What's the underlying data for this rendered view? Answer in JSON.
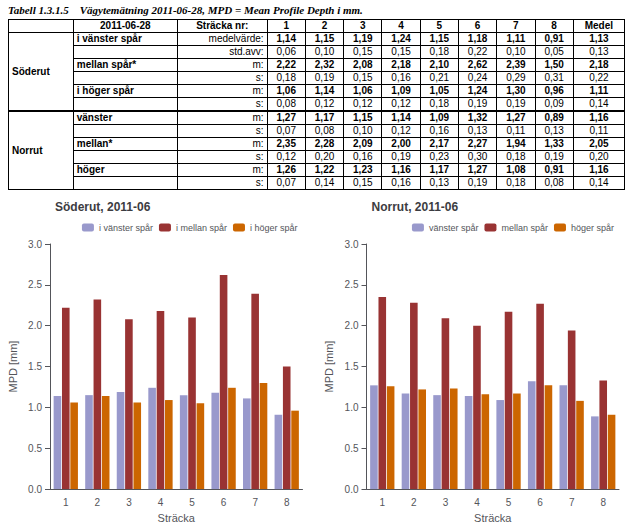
{
  "chart_data": [
    {
      "type": "table",
      "title": "Tabell 1.3.1.5    Vägytemätning 2011-06-28, MPD = Mean Profile Depth i mm.",
      "columns": [
        "2011-06-28",
        "Sträcka nr:",
        "1",
        "2",
        "3",
        "4",
        "5",
        "6",
        "7",
        "8",
        "Medel"
      ],
      "sections": [
        {
          "name": "Söderut",
          "rows": [
            {
              "label": "i vänster spår",
              "stat": "medelvärde:",
              "values": [
                "1,14",
                "1,15",
                "1,19",
                "1,24",
                "1,15",
                "1,18",
                "1,11",
                "0,91",
                "1,13"
              ]
            },
            {
              "stat": "std.avv:",
              "values": [
                "0,06",
                "0,10",
                "0,15",
                "0,15",
                "0,18",
                "0,22",
                "0,10",
                "0,05",
                "0,13"
              ]
            },
            {
              "label": "mellan spår*",
              "stat": "m:",
              "values": [
                "2,22",
                "2,32",
                "2,08",
                "2,18",
                "2,10",
                "2,62",
                "2,39",
                "1,50",
                "2,18"
              ]
            },
            {
              "stat": "s:",
              "values": [
                "0,18",
                "0,19",
                "0,15",
                "0,16",
                "0,21",
                "0,24",
                "0,29",
                "0,31",
                "0,22"
              ]
            },
            {
              "label": "i höger spår",
              "stat": "m:",
              "values": [
                "1,06",
                "1,14",
                "1,06",
                "1,09",
                "1,05",
                "1,24",
                "1,30",
                "0,96",
                "1,11"
              ]
            },
            {
              "stat": "s:",
              "values": [
                "0,08",
                "0,12",
                "0,12",
                "0,12",
                "0,18",
                "0,19",
                "0,19",
                "0,09",
                "0,14"
              ]
            }
          ]
        },
        {
          "name": "Norrut",
          "rows": [
            {
              "label": "vänster",
              "stat": "m:",
              "values": [
                "1,27",
                "1,17",
                "1,15",
                "1,14",
                "1,09",
                "1,32",
                "1,27",
                "0,89",
                "1,16"
              ]
            },
            {
              "stat": "s:",
              "values": [
                "0,07",
                "0,08",
                "0,10",
                "0,12",
                "0,16",
                "0,13",
                "0,11",
                "0,13",
                "0,11"
              ]
            },
            {
              "label": "mellan*",
              "stat": "m:",
              "values": [
                "2,35",
                "2,28",
                "2,09",
                "2,00",
                "2,17",
                "2,27",
                "1,94",
                "1,33",
                "2,05"
              ]
            },
            {
              "stat": "s:",
              "values": [
                "0,12",
                "0,20",
                "0,16",
                "0,19",
                "0,23",
                "0,30",
                "0,18",
                "0,19",
                "0,20"
              ]
            },
            {
              "label": "höger",
              "stat": "m:",
              "values": [
                "1,26",
                "1,22",
                "1,23",
                "1,16",
                "1,17",
                "1,27",
                "1,08",
                "0,91",
                "1,16"
              ]
            },
            {
              "stat": "s:",
              "values": [
                "0,07",
                "0,14",
                "0,15",
                "0,16",
                "0,13",
                "0,19",
                "0,18",
                "0,08",
                "0,14"
              ]
            }
          ]
        }
      ]
    },
    {
      "type": "bar",
      "title": "Söderut, 2011-06",
      "categories": [
        "1",
        "2",
        "3",
        "4",
        "5",
        "6",
        "7",
        "8"
      ],
      "series": [
        {
          "name": "i vänster spår",
          "color": "#9999cc",
          "values": [
            1.14,
            1.15,
            1.19,
            1.24,
            1.15,
            1.18,
            1.11,
            0.91
          ]
        },
        {
          "name": "i mellan spår",
          "color": "#993333",
          "values": [
            2.22,
            2.32,
            2.08,
            2.18,
            2.1,
            2.62,
            2.39,
            1.5
          ]
        },
        {
          "name": "i höger spår",
          "color": "#cc6600",
          "values": [
            1.06,
            1.14,
            1.06,
            1.09,
            1.05,
            1.24,
            1.3,
            0.96
          ]
        }
      ],
      "xlabel": "Sträcka",
      "ylabel": "MPD [mm]",
      "ylim": [
        0,
        3.0
      ],
      "yticks": [
        {
          "value": 0,
          "label": "0.0"
        },
        0.5,
        {
          "value": 1,
          "label": "1.0"
        },
        1.5,
        {
          "value": 2,
          "label": "2.0"
        },
        2.5,
        {
          "value": 3,
          "label": "3.0"
        }
      ],
      "legend": "upper right",
      "grid": false
    },
    {
      "type": "bar",
      "title": "Norrut, 2011-06",
      "categories": [
        "1",
        "2",
        "3",
        "4",
        "5",
        "6",
        "7",
        "8"
      ],
      "series": [
        {
          "name": "vänster spår",
          "color": "#9999cc",
          "values": [
            1.27,
            1.17,
            1.15,
            1.14,
            1.09,
            1.32,
            1.27,
            0.89
          ]
        },
        {
          "name": "mellan spår",
          "color": "#993333",
          "values": [
            2.35,
            2.28,
            2.09,
            2.0,
            2.17,
            2.27,
            1.94,
            1.33
          ]
        },
        {
          "name": "höger spår",
          "color": "#cc6600",
          "values": [
            1.26,
            1.22,
            1.23,
            1.16,
            1.17,
            1.27,
            1.08,
            0.91
          ]
        }
      ],
      "xlabel": "Sträcka",
      "ylabel": "MPD [mm]",
      "ylim": [
        0,
        3.0
      ],
      "yticks": [
        {
          "value": 0,
          "label": "0.0"
        },
        0.5,
        {
          "value": 1,
          "label": "1.0"
        },
        1.5,
        {
          "value": 2,
          "label": "2.0"
        },
        2.5,
        {
          "value": 3,
          "label": "3.0"
        }
      ],
      "legend": "upper right",
      "grid": false
    }
  ]
}
